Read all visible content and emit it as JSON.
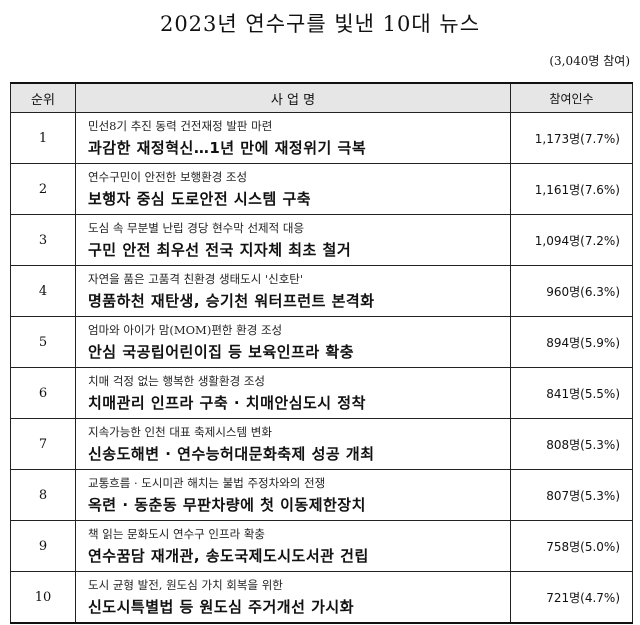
{
  "title": "2023년 연수구를 빛낸 10대 뉴스",
  "participants_total": "(3,040명 참여)",
  "table": {
    "headers": {
      "rank": "순위",
      "project": "사 업 명",
      "participants": "참여인수"
    },
    "rows": [
      {
        "rank": "1",
        "subtitle": "민선8기 추진 동력 건전재정 발판 마련",
        "headline": "과감한 재정혁신…1년 만에 재정위기 극복",
        "participants": "1,173명(7.7%)"
      },
      {
        "rank": "2",
        "subtitle": "연수구민이 안전한 보행환경 조성",
        "headline": "보행자 중심 도로안전 시스템 구축",
        "participants": "1,161명(7.6%)"
      },
      {
        "rank": "3",
        "subtitle": "도심 속 무분별 난립 경당 현수막 선제적 대응",
        "headline": "구민 안전 최우선 전국 지자체 최초 철거",
        "participants": "1,094명(7.2%)"
      },
      {
        "rank": "4",
        "subtitle": "자연을 품은 고품격 친환경 생태도시 '신호탄'",
        "headline": "명품하천 재탄생, 승기천 워터프런트 본격화",
        "participants": "960명(6.3%)"
      },
      {
        "rank": "5",
        "subtitle": "엄마와 아이가 맘(MOM)편한 환경 조성",
        "headline": "안심 국공립어린이집 등 보육인프라 확충",
        "participants": "894명(5.9%)"
      },
      {
        "rank": "6",
        "subtitle": "치매 걱정 없는 행복한 생활환경 조성",
        "headline": "치매관리 인프라 구축 · 치매안심도시 정착",
        "participants": "841명(5.5%)"
      },
      {
        "rank": "7",
        "subtitle": "지속가능한 인천 대표 축제시스템 변화",
        "headline": "신송도해변 · 연수능허대문화축제 성공 개최",
        "participants": "808명(5.3%)"
      },
      {
        "rank": "8",
        "subtitle": "교통흐름 · 도시미관 해치는 불법 주정차와의 전쟁",
        "headline": "옥련 · 동춘동 무판차량에 첫 이동제한장치",
        "participants": "807명(5.3%)"
      },
      {
        "rank": "9",
        "subtitle": "책 읽는 문화도시 연수구 인프라 확충",
        "headline": "연수꿈담 재개관, 송도국제도시도서관 건립",
        "participants": "758명(5.0%)"
      },
      {
        "rank": "10",
        "subtitle": "도시 균형 발전, 원도심 가치 회복을 위한",
        "headline": "신도시특별법 등 원도심 주거개선 가시화",
        "participants": "721명(4.7%)"
      }
    ]
  }
}
